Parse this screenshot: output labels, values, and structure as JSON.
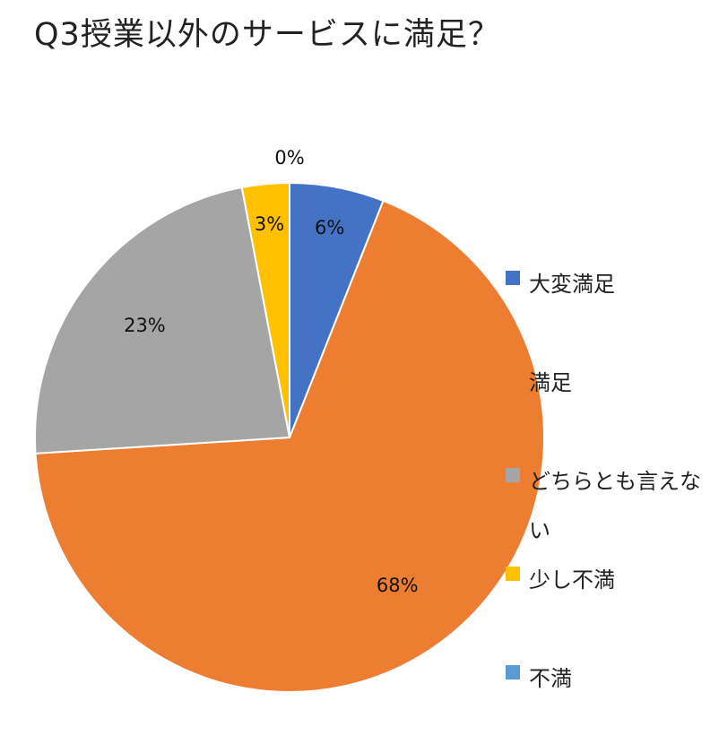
{
  "chart_data": {
    "type": "pie",
    "title": "Q3授業以外のサービスに満足？",
    "categories": [
      "大変満足",
      "満足",
      "どちらとも言えない",
      "少し不満",
      "不満"
    ],
    "values": [
      6,
      68,
      23,
      3,
      0
    ],
    "labels": [
      "6%",
      "68%",
      "23%",
      "3%",
      "0%"
    ],
    "colors": [
      "#4472C4",
      "#ED7D31",
      "#A5A5A5",
      "#FFC000",
      "#5B9BD5"
    ],
    "legend_position": "right",
    "start_angle": "top",
    "direction": "clockwise"
  }
}
